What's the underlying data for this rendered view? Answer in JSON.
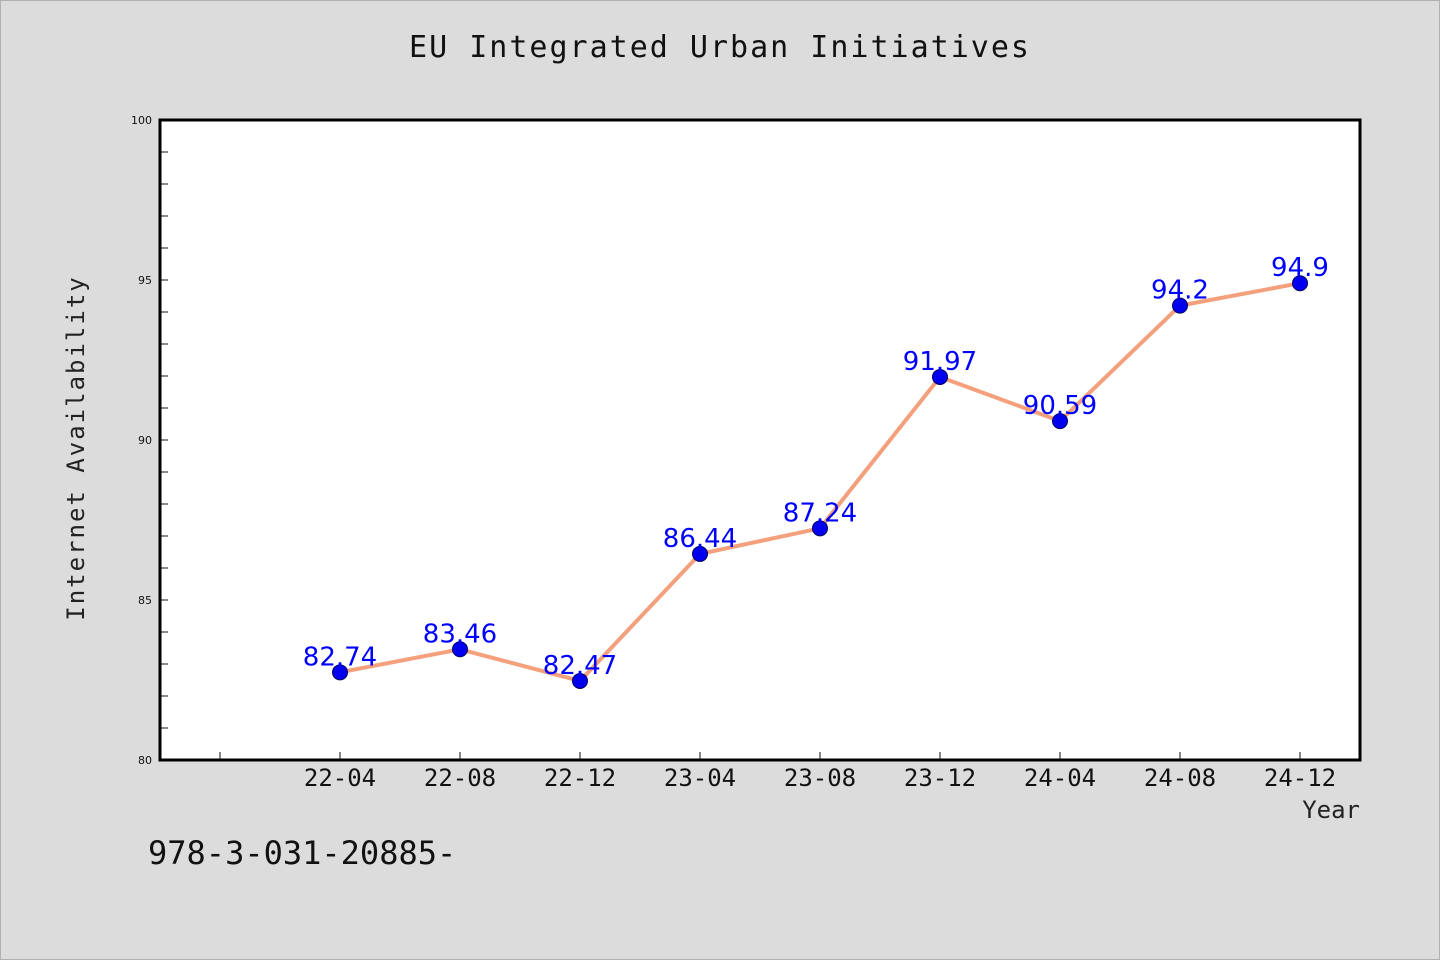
{
  "chart_data": {
    "type": "line",
    "title": "EU Integrated Urban Initiatives",
    "xlabel": "Year",
    "ylabel": "Internet Availability",
    "categories": [
      "22-04",
      "22-08",
      "22-12",
      "23-04",
      "23-08",
      "23-12",
      "24-04",
      "24-08",
      "24-12"
    ],
    "series": [
      {
        "values": [
          82.74,
          83.46,
          82.47,
          86.44,
          87.24,
          91.97,
          90.59,
          94.2,
          94.9
        ],
        "labels": [
          "82.74",
          "83.46",
          "82.47",
          "86.44",
          "87.24",
          "91.97",
          "90.59",
          "94.2",
          "94.9"
        ],
        "line_color": "#f4a07c",
        "marker_color": "#0000ee",
        "label_color": "#0000ff"
      }
    ],
    "ylim": [
      80,
      100
    ],
    "y_ticks": [
      80,
      85,
      90,
      95,
      100
    ],
    "y_tick_labels": [
      "80",
      "85",
      "90",
      "95",
      "100"
    ],
    "grid": false,
    "legend": "none"
  },
  "footer": {
    "code": "978-3-031-20885-"
  }
}
